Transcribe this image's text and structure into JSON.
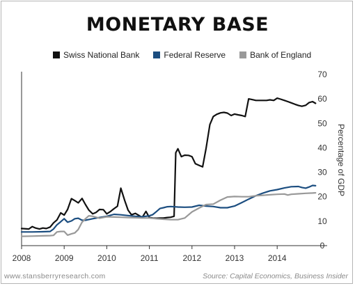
{
  "chart_data": {
    "type": "line",
    "title": "MONETARY BASE",
    "ylabel": "Percentage of GDP",
    "xlabel": "",
    "xlim": [
      2008,
      2014.9
    ],
    "ylim": [
      0,
      70
    ],
    "x_ticks": [
      "2008",
      "2009",
      "2010",
      "2011",
      "2012",
      "2013",
      "2014"
    ],
    "y_ticks": [
      "0",
      "10",
      "20",
      "30",
      "40",
      "50",
      "60",
      "70"
    ],
    "grid": false,
    "legend_position": "top",
    "series": [
      {
        "name": "Swiss National Bank",
        "color": "#111111",
        "x": [
          2008.0,
          2008.17,
          2008.25,
          2008.33,
          2008.42,
          2008.5,
          2008.58,
          2008.67,
          2008.75,
          2008.83,
          2008.92,
          2009.0,
          2009.08,
          2009.17,
          2009.25,
          2009.33,
          2009.42,
          2009.5,
          2009.58,
          2009.67,
          2009.75,
          2009.83,
          2009.92,
          2010.0,
          2010.08,
          2010.17,
          2010.25,
          2010.33,
          2010.42,
          2010.5,
          2010.58,
          2010.67,
          2010.75,
          2010.83,
          2010.92,
          2011.0,
          2011.08,
          2011.17,
          2011.25,
          2011.33,
          2011.42,
          2011.5,
          2011.58,
          2011.62,
          2011.67,
          2011.75,
          2011.83,
          2011.92,
          2012.0,
          2012.08,
          2012.17,
          2012.25,
          2012.33,
          2012.42,
          2012.5,
          2012.58,
          2012.67,
          2012.75,
          2012.83,
          2012.92,
          2013.0,
          2013.08,
          2013.17,
          2013.25,
          2013.33,
          2013.42,
          2013.5,
          2013.58,
          2013.67,
          2013.75,
          2013.83,
          2013.92,
          2014.0,
          2014.08,
          2014.17,
          2014.25,
          2014.33,
          2014.42,
          2014.5,
          2014.58,
          2014.67,
          2014.75,
          2014.83,
          2014.9
        ],
        "values": [
          7,
          6.8,
          7.8,
          7.2,
          6.8,
          7.2,
          7.0,
          7.6,
          9.3,
          10.5,
          13.4,
          12.5,
          14.8,
          19.2,
          18.4,
          17.5,
          19.3,
          16.8,
          14.5,
          13.0,
          13.6,
          14.8,
          14.7,
          13.0,
          13.9,
          15.1,
          16.1,
          23.5,
          18.5,
          14.5,
          12.6,
          13.2,
          12.4,
          11.5,
          14.0,
          11.5,
          11.3,
          11.2,
          11.3,
          11.3,
          11.5,
          11.6,
          12.0,
          38.0,
          39.6,
          36.4,
          37.0,
          36.9,
          36.4,
          33.5,
          32.8,
          32.2,
          39.7,
          49.5,
          52.8,
          53.7,
          54.3,
          54.5,
          54.2,
          53.2,
          53.8,
          53.5,
          53.2,
          52.8,
          60.0,
          59.7,
          59.4,
          59.4,
          59.4,
          59.4,
          59.6,
          59.4,
          60.3,
          59.9,
          59.4,
          58.9,
          58.4,
          57.8,
          57.3,
          57.0,
          57.4,
          58.5,
          58.9,
          58.2
        ]
      },
      {
        "name": "Federal Reserve",
        "color": "#1c4e80",
        "x": [
          2008.0,
          2008.25,
          2008.5,
          2008.67,
          2008.75,
          2008.83,
          2008.92,
          2009.0,
          2009.08,
          2009.17,
          2009.25,
          2009.33,
          2009.42,
          2009.5,
          2009.67,
          2009.83,
          2010.0,
          2010.17,
          2010.33,
          2010.5,
          2010.67,
          2010.83,
          2011.0,
          2011.08,
          2011.17,
          2011.25,
          2011.33,
          2011.42,
          2011.5,
          2011.58,
          2011.67,
          2011.83,
          2012.0,
          2012.17,
          2012.33,
          2012.5,
          2012.67,
          2012.83,
          2013.0,
          2013.17,
          2013.33,
          2013.5,
          2013.67,
          2013.83,
          2014.0,
          2014.17,
          2014.33,
          2014.5,
          2014.58,
          2014.67,
          2014.75,
          2014.83,
          2014.9
        ],
        "values": [
          5.6,
          5.6,
          5.7,
          5.8,
          6.8,
          8.5,
          9.8,
          11.0,
          9.6,
          10.1,
          11.0,
          11.2,
          10.4,
          10.4,
          11.0,
          11.5,
          12.0,
          12.8,
          12.6,
          12.3,
          12.0,
          11.8,
          12.2,
          12.7,
          14.0,
          15.2,
          15.5,
          15.9,
          16.0,
          15.9,
          15.8,
          15.7,
          15.8,
          16.5,
          16.2,
          16.0,
          15.5,
          15.5,
          16.2,
          17.6,
          19.0,
          20.4,
          21.5,
          22.4,
          22.9,
          23.6,
          24.1,
          24.2,
          23.8,
          23.5,
          24.0,
          24.6,
          24.5
        ]
      },
      {
        "name": "Bank of England",
        "color": "#999999",
        "x": [
          2008.0,
          2008.25,
          2008.5,
          2008.67,
          2008.75,
          2008.83,
          2008.92,
          2009.0,
          2009.08,
          2009.17,
          2009.25,
          2009.33,
          2009.42,
          2009.5,
          2009.58,
          2009.67,
          2009.83,
          2010.0,
          2010.17,
          2010.33,
          2010.5,
          2010.67,
          2010.83,
          2011.0,
          2011.17,
          2011.33,
          2011.5,
          2011.67,
          2011.83,
          2012.0,
          2012.17,
          2012.33,
          2012.5,
          2012.67,
          2012.83,
          2013.0,
          2013.17,
          2013.33,
          2013.5,
          2013.67,
          2013.83,
          2014.0,
          2014.17,
          2014.25,
          2014.33,
          2014.5,
          2014.67,
          2014.83,
          2014.9
        ],
        "values": [
          3.8,
          3.9,
          4.0,
          4.1,
          4.2,
          5.6,
          5.8,
          5.8,
          4.3,
          4.8,
          5.2,
          6.6,
          9.6,
          11.0,
          12.2,
          12.0,
          11.2,
          11.8,
          11.7,
          11.6,
          11.5,
          11.4,
          11.3,
          11.3,
          11.0,
          10.8,
          10.6,
          10.6,
          11.3,
          13.8,
          15.4,
          16.8,
          17.0,
          18.6,
          19.9,
          20.1,
          20.0,
          20.0,
          20.4,
          20.6,
          20.8,
          21.0,
          21.1,
          20.7,
          21.0,
          21.2,
          21.4,
          21.5,
          21.6
        ]
      }
    ]
  },
  "footer": {
    "site": "www.stansberryresearch.com",
    "source": "Source: Capital Economics, Business Insider"
  }
}
